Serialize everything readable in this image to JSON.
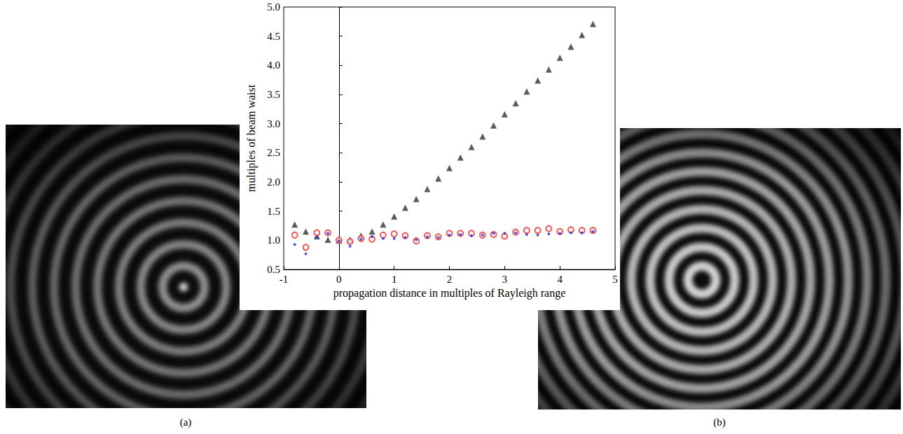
{
  "chart_data": {
    "type": "scatter",
    "xlabel": "propagation distance in multiples of Rayleigh range",
    "ylabel": "multiples of beam waist",
    "xlim": [
      -1,
      5
    ],
    "xticks": [
      -1,
      0,
      1,
      2,
      3,
      4,
      5
    ],
    "ylim": [
      0.5,
      5.0
    ],
    "yticks": [
      0.5,
      {
        "value": 1.0,
        "label": "1.0"
      },
      1.5,
      {
        "value": 2.0,
        "label": "2.0"
      },
      2.5,
      {
        "value": 3.0,
        "label": "3.0"
      },
      3.5,
      {
        "value": 4.0,
        "label": "4.0"
      },
      4.5,
      {
        "value": 5.0,
        "label": "5.0"
      }
    ],
    "grid": false,
    "x": [
      -0.8,
      -0.6,
      -0.4,
      -0.2,
      0.0,
      0.2,
      0.4,
      0.6,
      0.8,
      1.0,
      1.2,
      1.4,
      1.6,
      1.8,
      2.0,
      2.2,
      2.4,
      2.6,
      2.8,
      3.0,
      3.2,
      3.4,
      3.6,
      3.8,
      4.0,
      4.2,
      4.4,
      4.6
    ],
    "series": [
      {
        "color": "#333333",
        "marker": "triangle",
        "values": [
          1.27,
          1.15,
          1.07,
          1.01,
          1.0,
          1.01,
          1.08,
          1.15,
          1.27,
          1.41,
          1.56,
          1.71,
          1.88,
          2.06,
          2.24,
          2.42,
          2.6,
          2.78,
          2.97,
          3.16,
          3.35,
          3.55,
          3.74,
          3.93,
          4.13,
          4.32,
          4.52,
          4.71
        ]
      },
      {
        "color": "#e8312f",
        "marker": "open_circle",
        "values": [
          1.09,
          0.88,
          1.13,
          1.13,
          1.0,
          0.98,
          1.03,
          1.02,
          1.09,
          1.11,
          1.08,
          0.99,
          1.08,
          1.06,
          1.12,
          1.12,
          1.12,
          1.09,
          1.1,
          1.07,
          1.14,
          1.17,
          1.17,
          1.2,
          1.15,
          1.18,
          1.17,
          1.17
        ]
      },
      {
        "color": "#2a2ad8",
        "marker": "dot",
        "values": [
          0.93,
          0.77,
          1.05,
          1.12,
          0.99,
          0.9,
          1.02,
          1.06,
          1.03,
          1.03,
          1.05,
          1.01,
          1.06,
          1.05,
          1.09,
          1.1,
          1.08,
          1.09,
          1.12,
          1.12,
          1.13,
          1.1,
          1.09,
          1.11,
          1.12,
          1.13,
          1.13,
          1.15
        ]
      }
    ]
  },
  "panels": [
    {
      "label": "(a)"
    },
    {
      "label": "(b)"
    }
  ]
}
